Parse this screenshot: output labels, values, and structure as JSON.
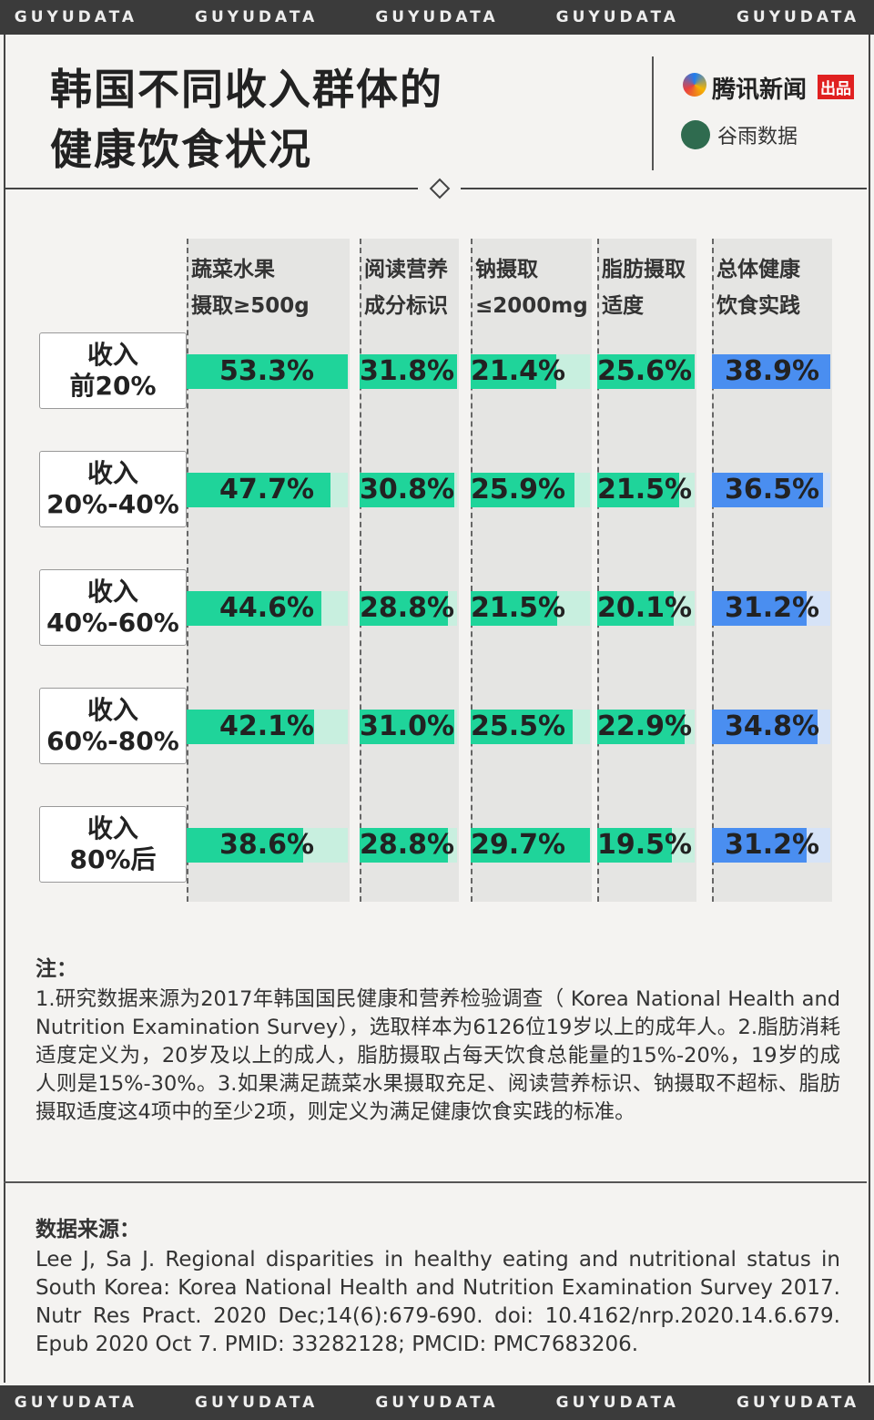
{
  "banner": "GUYUDATA",
  "header": {
    "title_lines": [
      "韩国不同收入群体的",
      "健康饮食状况"
    ],
    "publisher": "腾讯新闻",
    "publisher_tag": "出品",
    "partner": "谷雨数据"
  },
  "chart_data": {
    "type": "bar",
    "categories": [
      "收入\n前20%",
      "收入\n20%-40%",
      "收入\n40%-60%",
      "收入\n60%-80%",
      "收入\n80%后"
    ],
    "series": [
      {
        "name": "蔬菜水果\n摄取≥500g",
        "color": "#1fd49a",
        "values": [
          53.3,
          47.7,
          44.6,
          42.1,
          38.6
        ],
        "value_labels": [
          "53.3%",
          "47.7%",
          "44.6%",
          "42.1%",
          "38.6%"
        ]
      },
      {
        "name": "阅读营养\n成分标识",
        "color": "#1fd49a",
        "values": [
          31.8,
          30.8,
          28.8,
          31.0,
          28.8
        ],
        "value_labels": [
          "31.8%",
          "30.8%",
          "28.8%",
          "31.0%",
          "28.8%"
        ]
      },
      {
        "name": "钠摄取\n≤2000mg",
        "color": "#1fd49a",
        "values": [
          21.4,
          25.9,
          21.5,
          25.5,
          29.7
        ],
        "value_labels": [
          "21.4%",
          "25.9%",
          "21.5%",
          "25.5%",
          "29.7%"
        ]
      },
      {
        "name": "脂肪摄取\n适度",
        "color": "#1fd49a",
        "values": [
          25.6,
          21.5,
          20.1,
          22.9,
          19.5
        ],
        "value_labels": [
          "25.6%",
          "21.5%",
          "20.1%",
          "22.9%",
          "19.5%"
        ]
      },
      {
        "name": "总体健康\n饮食实践",
        "color": "#4a8ef0",
        "values": [
          38.9,
          36.5,
          31.2,
          34.8,
          31.2
        ],
        "value_labels": [
          "38.9%",
          "36.5%",
          "31.2%",
          "34.8%",
          "31.2%"
        ]
      }
    ]
  },
  "notes": {
    "heading": "注：",
    "text": "1.研究数据来源为2017年韩国国民健康和营养检验调查（ Korea National Health and Nutrition Examination Survey），选取样本为6126位19岁以上的成年人。2.脂肪消耗适度定义为，20岁及以上的成人，脂肪摄取占每天饮食总能量的15%-20%，19岁的成人则是15%-30%。3.如果满足蔬菜水果摄取充足、阅读营养标识、钠摄取不超标、脂肪摄取适度这4项中的至少2项，则定义为满足健康饮食实践的标准。"
  },
  "source": {
    "heading": "数据来源：",
    "text": "Lee J, Sa J. Regional disparities in healthy eating and nutritional status in South Korea: Korea National Health and Nutrition Examination Survey 2017. Nutr Res Pract. 2020 Dec;14(6):679-690. doi: 10.4162/nrp.2020.14.6.679. Epub 2020 Oct 7. PMID: 33282128; PMCID: PMC7683206."
  }
}
